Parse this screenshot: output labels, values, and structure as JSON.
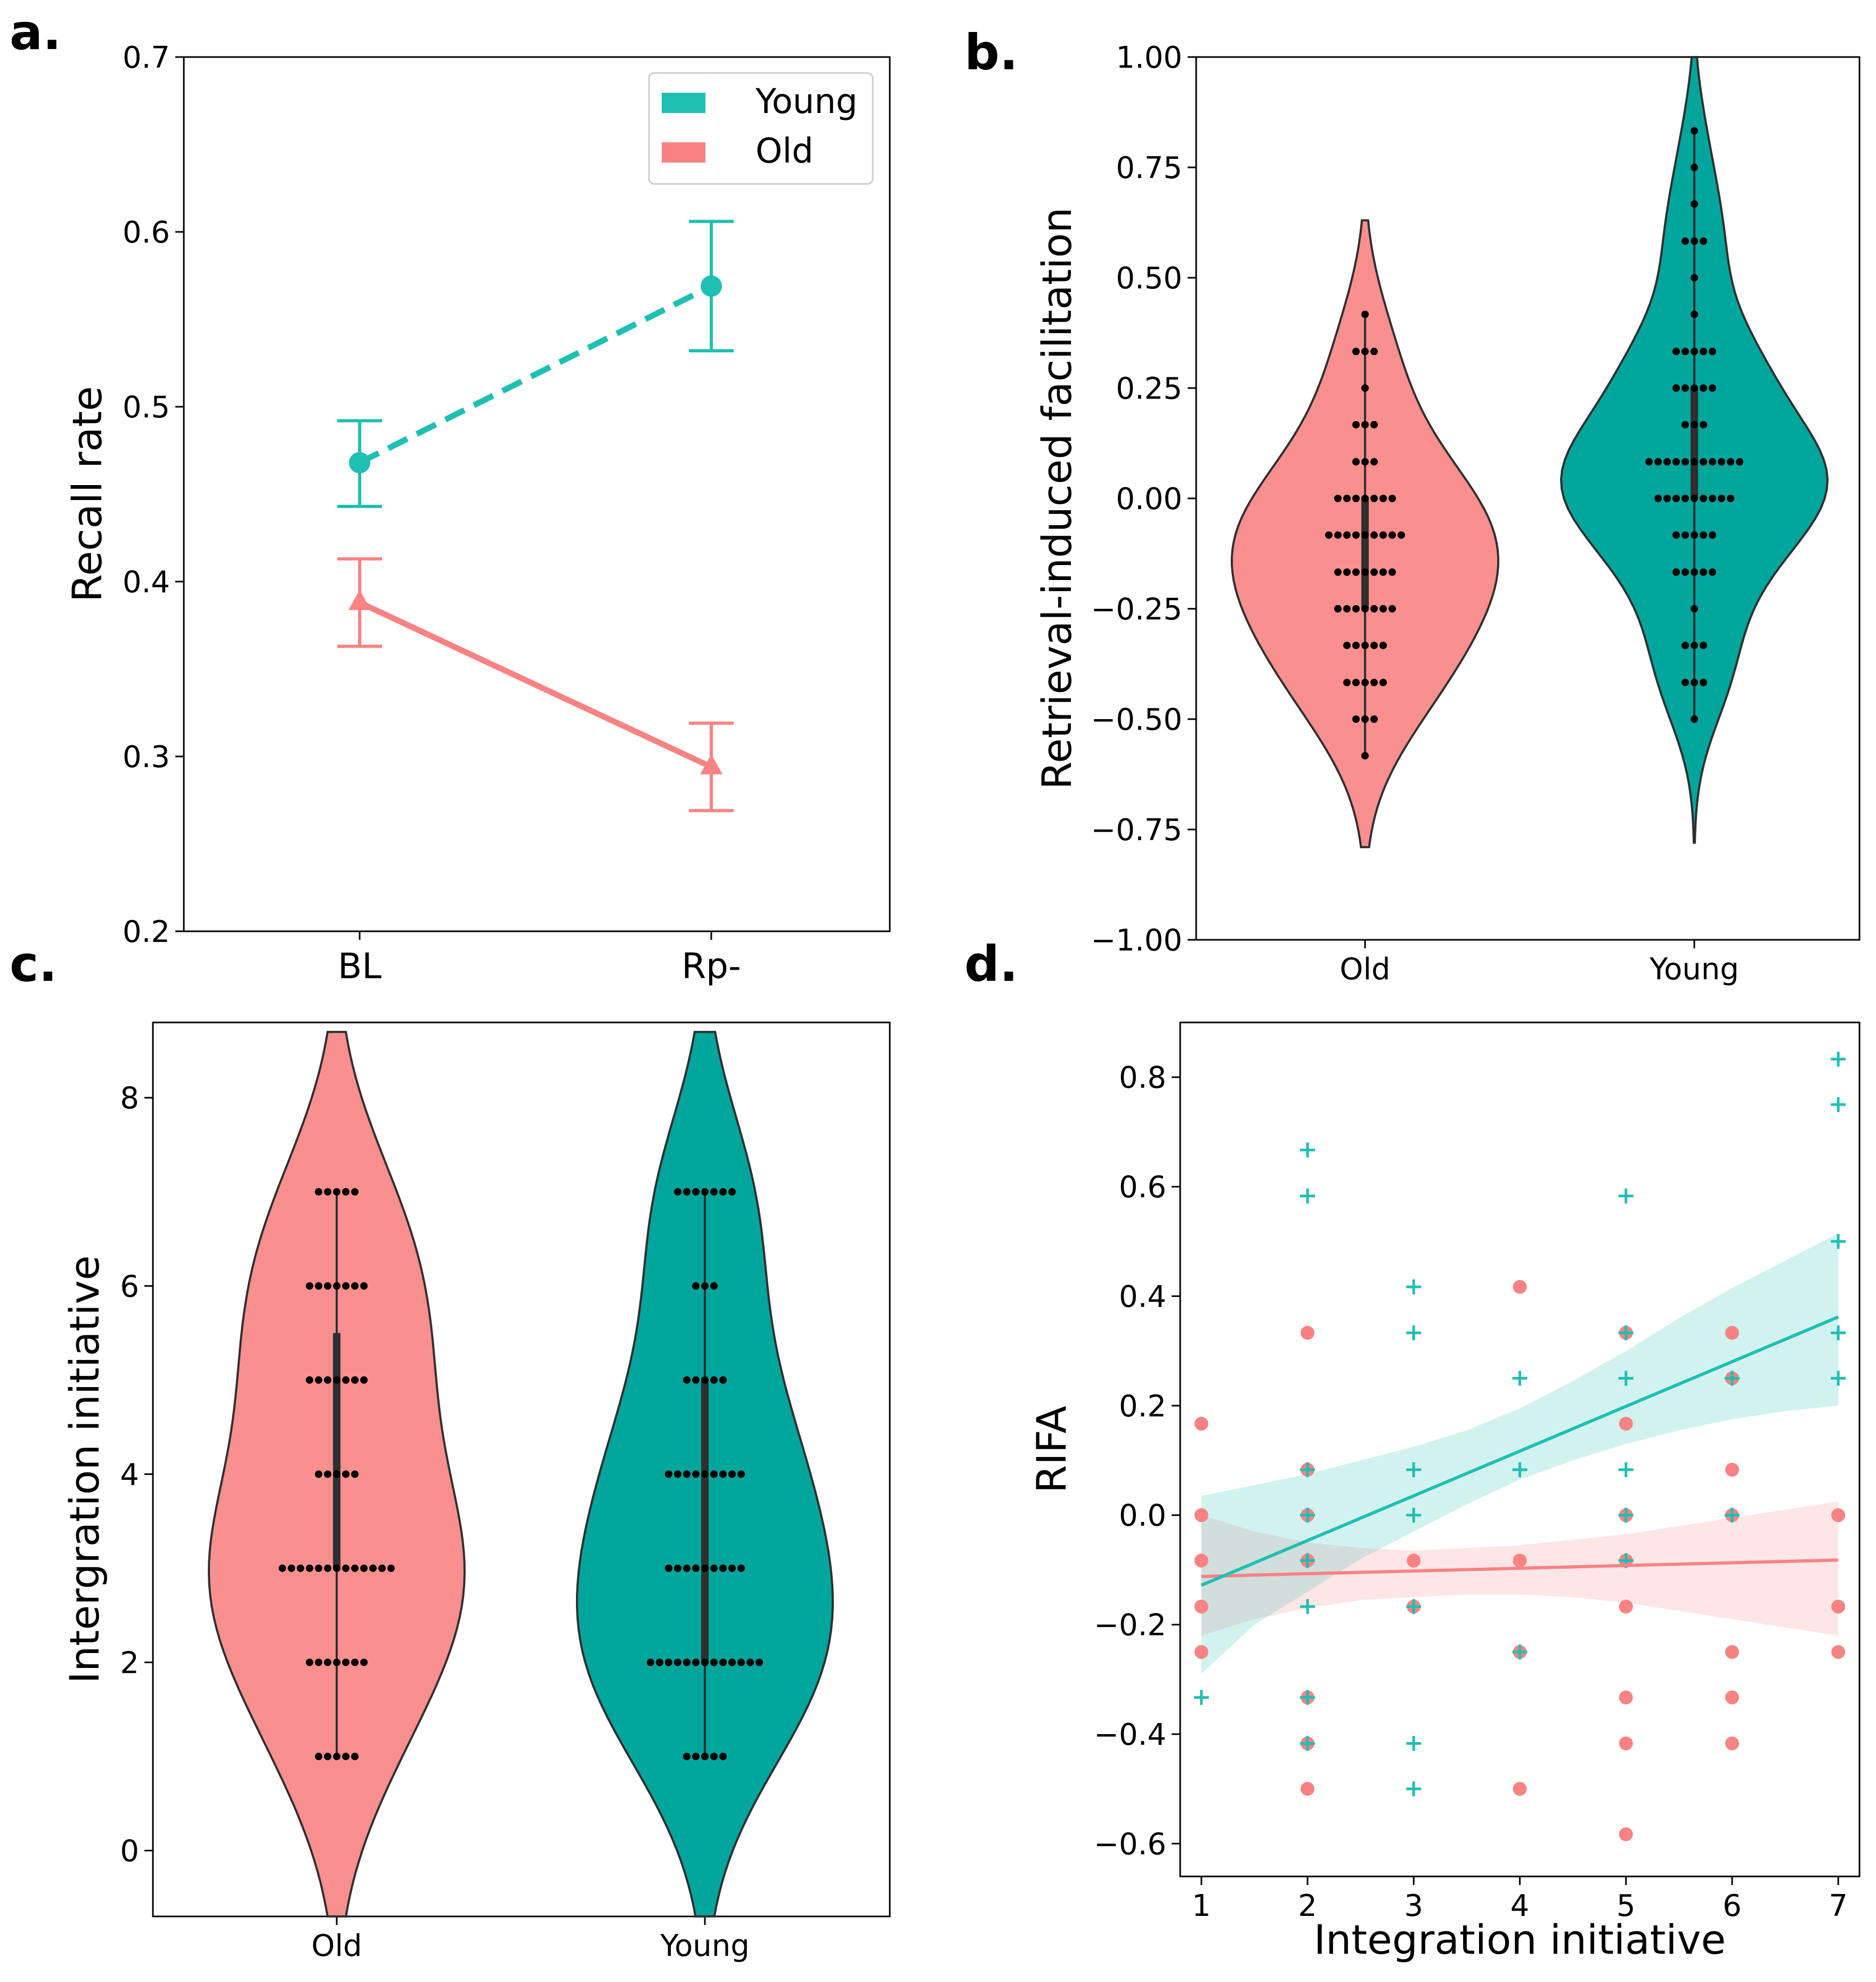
{
  "colors": {
    "young": "#1fbfb3",
    "old": "#f98283",
    "young_fill": "#00a59c",
    "old_fill": "#f98f8e",
    "dark": "#2f2f2f",
    "dot": "#000000"
  },
  "panels": {
    "a": {
      "letter": "a."
    },
    "b": {
      "letter": "b."
    },
    "c": {
      "letter": "c."
    },
    "d": {
      "letter": "d."
    }
  },
  "chart_data": [
    {
      "id": "a",
      "type": "line",
      "title": "",
      "xlabel": "",
      "ylabel": "Recall rate",
      "categories": [
        "BL",
        "Rp-"
      ],
      "ylim": [
        0.2,
        0.7
      ],
      "yticks": [
        0.2,
        0.3,
        0.4,
        0.5,
        0.6,
        0.7
      ],
      "ytick_labels": [
        "0.2",
        "0.3",
        "0.4",
        "0.5",
        "0.6",
        "0.7"
      ],
      "legend": {
        "position": "top-right",
        "entries": [
          "Young",
          "Old"
        ]
      },
      "series": [
        {
          "name": "Young",
          "values": [
            0.468,
            0.569
          ],
          "err_low": [
            0.443,
            0.532
          ],
          "err_high": [
            0.492,
            0.606
          ],
          "line": "dashed",
          "marker": "circle"
        },
        {
          "name": "Old",
          "values": [
            0.388,
            0.294
          ],
          "err_low": [
            0.363,
            0.269
          ],
          "err_high": [
            0.413,
            0.319
          ],
          "line": "solid",
          "marker": "triangle"
        }
      ]
    },
    {
      "id": "b",
      "type": "violin",
      "title": "",
      "xlabel": "",
      "ylabel": "Retrieval-induced facilitation",
      "categories": [
        "Old",
        "Young"
      ],
      "ylim": [
        -1.0,
        1.0
      ],
      "yticks": [
        -1.0,
        -0.75,
        -0.5,
        -0.25,
        0.0,
        0.25,
        0.5,
        0.75,
        1.0
      ],
      "ytick_labels": [
        "−1.00",
        "−0.75",
        "−0.50",
        "−0.25",
        "0.00",
        "0.25",
        "0.50",
        "0.75",
        "1.00"
      ],
      "groups": [
        {
          "name": "Old",
          "range": [
            -0.79,
            0.63
          ],
          "points": [
            {
              "v": 0.417,
              "n": 1
            },
            {
              "v": 0.333,
              "n": 3
            },
            {
              "v": 0.25,
              "n": 1
            },
            {
              "v": 0.167,
              "n": 3
            },
            {
              "v": 0.083,
              "n": 3
            },
            {
              "v": 0.0,
              "n": 7
            },
            {
              "v": -0.083,
              "n": 9
            },
            {
              "v": -0.167,
              "n": 7
            },
            {
              "v": -0.25,
              "n": 7
            },
            {
              "v": -0.333,
              "n": 5
            },
            {
              "v": -0.417,
              "n": 5
            },
            {
              "v": -0.5,
              "n": 3
            },
            {
              "v": -0.583,
              "n": 1
            }
          ],
          "box": [
            -0.25,
            0.0
          ]
        },
        {
          "name": "Young",
          "range": [
            -0.78,
            1.0
          ],
          "points": [
            {
              "v": 0.833,
              "n": 1
            },
            {
              "v": 0.75,
              "n": 1
            },
            {
              "v": 0.667,
              "n": 1
            },
            {
              "v": 0.583,
              "n": 3
            },
            {
              "v": 0.5,
              "n": 1
            },
            {
              "v": 0.417,
              "n": 1
            },
            {
              "v": 0.333,
              "n": 5
            },
            {
              "v": 0.25,
              "n": 5
            },
            {
              "v": 0.167,
              "n": 3
            },
            {
              "v": 0.083,
              "n": 11
            },
            {
              "v": 0.0,
              "n": 9
            },
            {
              "v": -0.083,
              "n": 5
            },
            {
              "v": -0.167,
              "n": 5
            },
            {
              "v": -0.25,
              "n": 1
            },
            {
              "v": -0.333,
              "n": 3
            },
            {
              "v": -0.417,
              "n": 3
            },
            {
              "v": -0.5,
              "n": 1
            }
          ],
          "box": [
            0.0,
            0.25
          ]
        }
      ]
    },
    {
      "id": "c",
      "type": "violin",
      "title": "",
      "xlabel": "",
      "ylabel": "Intergration initiative",
      "categories": [
        "Old",
        "Young"
      ],
      "ylim": [
        -0.7,
        8.8
      ],
      "yticks": [
        0,
        2,
        4,
        6,
        8
      ],
      "ytick_labels": [
        "0",
        "2",
        "4",
        "6",
        "8"
      ],
      "groups": [
        {
          "name": "Old",
          "range": [
            -0.7,
            8.7
          ],
          "points": [
            {
              "v": 7,
              "n": 5
            },
            {
              "v": 6,
              "n": 7
            },
            {
              "v": 5,
              "n": 7
            },
            {
              "v": 4,
              "n": 5
            },
            {
              "v": 3,
              "n": 13
            },
            {
              "v": 2,
              "n": 7
            },
            {
              "v": 1,
              "n": 5
            }
          ],
          "box": [
            3,
            5.5
          ]
        },
        {
          "name": "Young",
          "range": [
            -0.7,
            8.7
          ],
          "points": [
            {
              "v": 7,
              "n": 7
            },
            {
              "v": 6,
              "n": 3
            },
            {
              "v": 5,
              "n": 5
            },
            {
              "v": 4,
              "n": 9
            },
            {
              "v": 3,
              "n": 9
            },
            {
              "v": 2,
              "n": 13
            },
            {
              "v": 1,
              "n": 5
            }
          ],
          "box": [
            2,
            5
          ]
        }
      ]
    },
    {
      "id": "d",
      "type": "scatter",
      "title": "",
      "xlabel": "Integration initiative",
      "ylabel": "RIFA",
      "xlim": [
        0.8,
        7.2
      ],
      "ylim": [
        -0.66,
        0.9
      ],
      "xticks": [
        1,
        2,
        3,
        4,
        5,
        6,
        7
      ],
      "xtick_labels": [
        "1",
        "2",
        "3",
        "4",
        "5",
        "6",
        "7"
      ],
      "yticks": [
        -0.6,
        -0.4,
        -0.2,
        0.0,
        0.2,
        0.4,
        0.6,
        0.8
      ],
      "ytick_labels": [
        "−0.6",
        "−0.4",
        "−0.2",
        "0.0",
        "0.2",
        "0.4",
        "0.6",
        "0.8"
      ],
      "series": [
        {
          "name": "Old",
          "marker": "circle",
          "points": [
            [
              1,
              0.167
            ],
            [
              1,
              0.0
            ],
            [
              1,
              -0.083
            ],
            [
              1,
              -0.167
            ],
            [
              1,
              -0.25
            ],
            [
              2,
              0.333
            ],
            [
              2,
              0.083
            ],
            [
              2,
              0.0
            ],
            [
              2,
              -0.083
            ],
            [
              2,
              -0.333
            ],
            [
              2,
              -0.417
            ],
            [
              2,
              -0.5
            ],
            [
              3,
              -0.083
            ],
            [
              3,
              -0.167
            ],
            [
              4,
              0.417
            ],
            [
              4,
              -0.083
            ],
            [
              4,
              -0.25
            ],
            [
              4,
              -0.5
            ],
            [
              5,
              0.333
            ],
            [
              5,
              0.167
            ],
            [
              5,
              0.0
            ],
            [
              5,
              -0.083
            ],
            [
              5,
              -0.167
            ],
            [
              5,
              -0.333
            ],
            [
              5,
              -0.417
            ],
            [
              5,
              -0.583
            ],
            [
              6,
              0.333
            ],
            [
              6,
              0.25
            ],
            [
              6,
              0.083
            ],
            [
              6,
              0.0
            ],
            [
              6,
              -0.25
            ],
            [
              6,
              -0.333
            ],
            [
              6,
              -0.417
            ],
            [
              7,
              0.0
            ],
            [
              7,
              -0.167
            ],
            [
              7,
              -0.25
            ]
          ],
          "fit": {
            "x": [
              1,
              7
            ],
            "y": [
              -0.112,
              -0.082
            ]
          },
          "ci": {
            "x": [
              1,
              1.5,
              2,
              2.5,
              3,
              3.5,
              4,
              4.5,
              5,
              5.5,
              6,
              6.5,
              7
            ],
            "low": [
              -0.22,
              -0.19,
              -0.17,
              -0.155,
              -0.15,
              -0.145,
              -0.145,
              -0.15,
              -0.16,
              -0.175,
              -0.19,
              -0.205,
              -0.22
            ],
            "high": [
              0.0,
              -0.03,
              -0.05,
              -0.06,
              -0.065,
              -0.06,
              -0.055,
              -0.045,
              -0.035,
              -0.02,
              -0.005,
              0.01,
              0.025
            ]
          }
        },
        {
          "name": "Young",
          "marker": "plus",
          "points": [
            [
              1,
              -0.333
            ],
            [
              2,
              0.667
            ],
            [
              2,
              0.583
            ],
            [
              2,
              0.083
            ],
            [
              2,
              0.0
            ],
            [
              2,
              -0.083
            ],
            [
              2,
              -0.167
            ],
            [
              2,
              -0.333
            ],
            [
              2,
              -0.417
            ],
            [
              3,
              0.417
            ],
            [
              3,
              0.333
            ],
            [
              3,
              0.083
            ],
            [
              3,
              0.0
            ],
            [
              3,
              -0.167
            ],
            [
              3,
              -0.417
            ],
            [
              3,
              -0.5
            ],
            [
              4,
              0.25
            ],
            [
              4,
              0.083
            ],
            [
              4,
              -0.25
            ],
            [
              5,
              0.583
            ],
            [
              5,
              0.333
            ],
            [
              5,
              0.25
            ],
            [
              5,
              0.083
            ],
            [
              5,
              0.0
            ],
            [
              5,
              -0.083
            ],
            [
              6,
              0.25
            ],
            [
              6,
              0.0
            ],
            [
              7,
              0.833
            ],
            [
              7,
              0.75
            ],
            [
              7,
              0.5
            ],
            [
              7,
              0.333
            ],
            [
              7,
              0.25
            ]
          ],
          "fit": {
            "x": [
              1,
              7
            ],
            "y": [
              -0.128,
              0.362
            ]
          },
          "ci": {
            "x": [
              1,
              1.5,
              2,
              2.5,
              3,
              3.5,
              4,
              4.5,
              5,
              5.5,
              6,
              6.5,
              7
            ],
            "low": [
              -0.29,
              -0.2,
              -0.14,
              -0.08,
              -0.03,
              0.02,
              0.065,
              0.1,
              0.13,
              0.155,
              0.175,
              0.19,
              0.2
            ],
            "high": [
              0.035,
              0.055,
              0.075,
              0.1,
              0.125,
              0.155,
              0.195,
              0.245,
              0.3,
              0.36,
              0.415,
              0.465,
              0.515
            ]
          }
        }
      ]
    }
  ]
}
